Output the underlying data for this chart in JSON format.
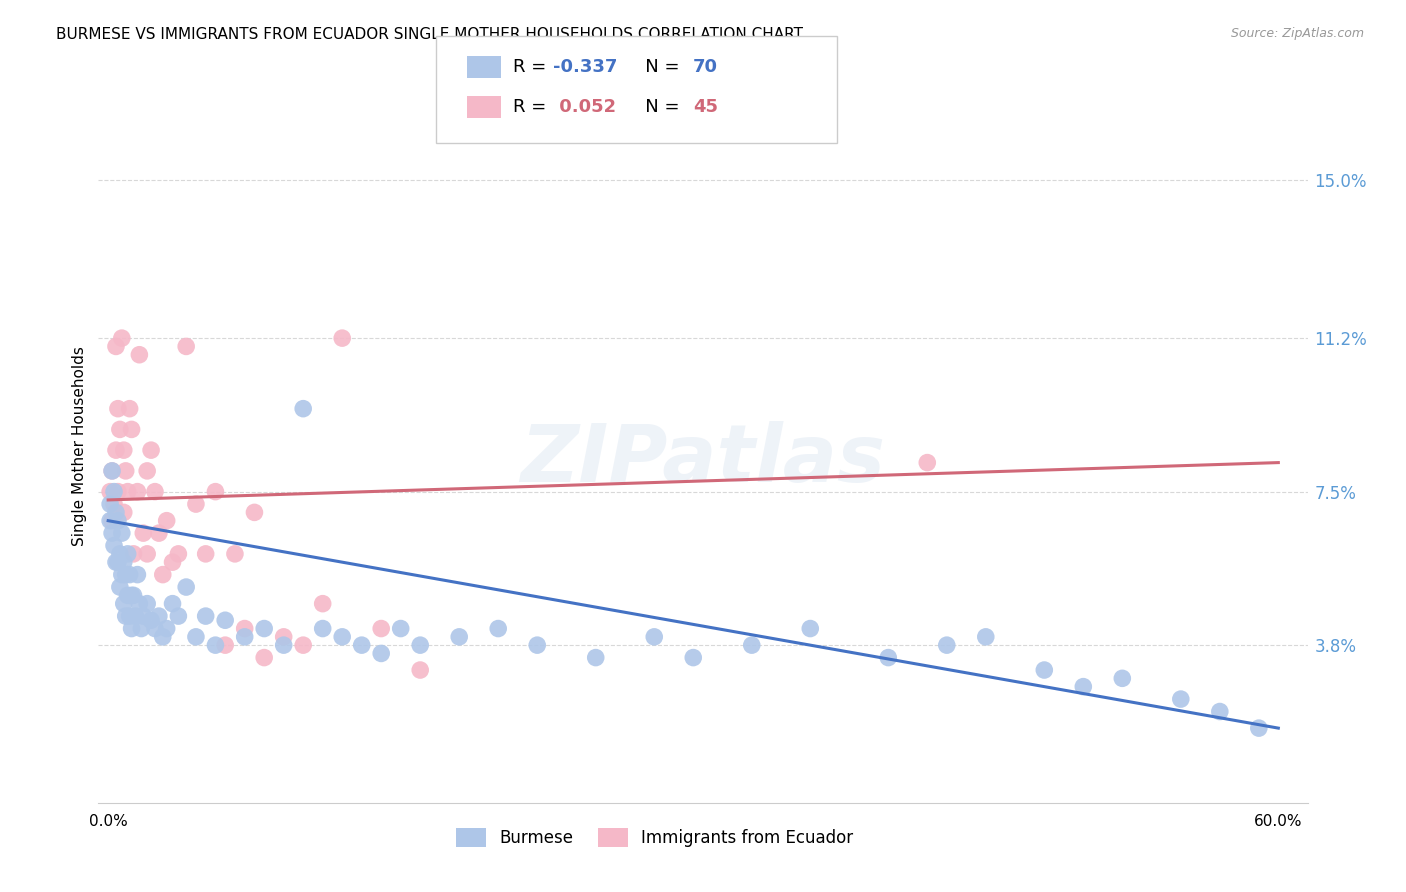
{
  "title": "BURMESE VS IMMIGRANTS FROM ECUADOR SINGLE MOTHER HOUSEHOLDS CORRELATION CHART",
  "source": "Source: ZipAtlas.com",
  "ylabel": "Single Mother Households",
  "ytick_labels": [
    "3.8%",
    "7.5%",
    "11.2%",
    "15.0%"
  ],
  "ytick_values": [
    0.038,
    0.075,
    0.112,
    0.15
  ],
  "xlim": [
    -0.005,
    0.615
  ],
  "ylim": [
    0.0,
    0.172
  ],
  "burmese_color": "#aec6e8",
  "ecuador_color": "#f5b8c8",
  "burmese_line_color": "#4472c4",
  "ecuador_line_color": "#d06878",
  "burmese_r": -0.337,
  "burmese_n": 70,
  "ecuador_r": 0.052,
  "ecuador_n": 45,
  "background_color": "#ffffff",
  "grid_color": "#d8d8d8",
  "watermark": "ZIPatlas",
  "burmese_scatter_x": [
    0.001,
    0.001,
    0.002,
    0.002,
    0.003,
    0.003,
    0.004,
    0.004,
    0.005,
    0.005,
    0.006,
    0.006,
    0.007,
    0.007,
    0.008,
    0.008,
    0.009,
    0.009,
    0.01,
    0.01,
    0.011,
    0.011,
    0.012,
    0.012,
    0.013,
    0.014,
    0.015,
    0.016,
    0.017,
    0.018,
    0.02,
    0.022,
    0.024,
    0.026,
    0.028,
    0.03,
    0.033,
    0.036,
    0.04,
    0.045,
    0.05,
    0.055,
    0.06,
    0.07,
    0.08,
    0.09,
    0.1,
    0.11,
    0.12,
    0.13,
    0.14,
    0.15,
    0.16,
    0.18,
    0.2,
    0.22,
    0.25,
    0.28,
    0.3,
    0.33,
    0.36,
    0.4,
    0.43,
    0.45,
    0.48,
    0.5,
    0.52,
    0.55,
    0.57,
    0.59
  ],
  "burmese_scatter_y": [
    0.072,
    0.068,
    0.08,
    0.065,
    0.075,
    0.062,
    0.07,
    0.058,
    0.068,
    0.058,
    0.06,
    0.052,
    0.065,
    0.055,
    0.058,
    0.048,
    0.055,
    0.045,
    0.06,
    0.05,
    0.055,
    0.045,
    0.05,
    0.042,
    0.05,
    0.045,
    0.055,
    0.048,
    0.042,
    0.045,
    0.048,
    0.044,
    0.042,
    0.045,
    0.04,
    0.042,
    0.048,
    0.045,
    0.052,
    0.04,
    0.045,
    0.038,
    0.044,
    0.04,
    0.042,
    0.038,
    0.095,
    0.042,
    0.04,
    0.038,
    0.036,
    0.042,
    0.038,
    0.04,
    0.042,
    0.038,
    0.035,
    0.04,
    0.035,
    0.038,
    0.042,
    0.035,
    0.038,
    0.04,
    0.032,
    0.028,
    0.03,
    0.025,
    0.022,
    0.018
  ],
  "ecuador_scatter_x": [
    0.001,
    0.002,
    0.002,
    0.003,
    0.004,
    0.004,
    0.005,
    0.005,
    0.006,
    0.007,
    0.008,
    0.008,
    0.009,
    0.01,
    0.011,
    0.012,
    0.013,
    0.015,
    0.016,
    0.018,
    0.02,
    0.02,
    0.022,
    0.024,
    0.026,
    0.028,
    0.03,
    0.033,
    0.036,
    0.04,
    0.045,
    0.05,
    0.055,
    0.06,
    0.065,
    0.07,
    0.075,
    0.08,
    0.09,
    0.1,
    0.11,
    0.12,
    0.14,
    0.16,
    0.42
  ],
  "ecuador_scatter_y": [
    0.075,
    0.068,
    0.08,
    0.072,
    0.11,
    0.085,
    0.095,
    0.075,
    0.09,
    0.112,
    0.07,
    0.085,
    0.08,
    0.075,
    0.095,
    0.09,
    0.06,
    0.075,
    0.108,
    0.065,
    0.08,
    0.06,
    0.085,
    0.075,
    0.065,
    0.055,
    0.068,
    0.058,
    0.06,
    0.11,
    0.072,
    0.06,
    0.075,
    0.038,
    0.06,
    0.042,
    0.07,
    0.035,
    0.04,
    0.038,
    0.048,
    0.112,
    0.042,
    0.032,
    0.082
  ],
  "burmese_trend_start_y": 0.068,
  "burmese_trend_end_y": 0.018,
  "ecuador_trend_start_y": 0.073,
  "ecuador_trend_end_y": 0.082
}
